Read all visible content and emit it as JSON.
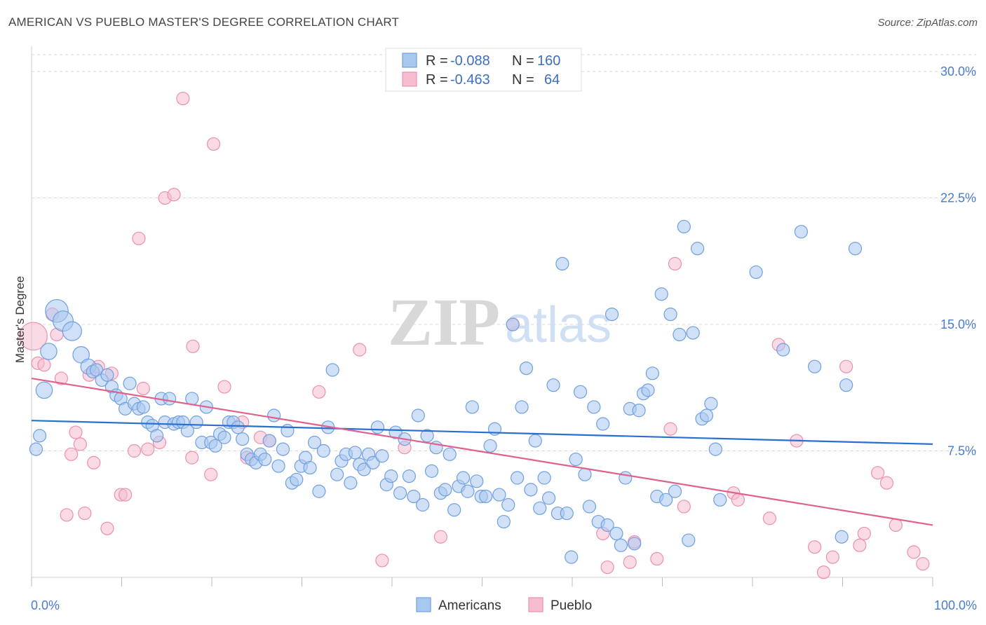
{
  "title": "AMERICAN VS PUEBLO MASTER'S DEGREE CORRELATION CHART",
  "source": "Source: ZipAtlas.com",
  "watermark": {
    "zip": "ZIP",
    "atlas": "atlas"
  },
  "colors": {
    "blue_fill": "#a9c8f0",
    "blue_stroke": "#6f9fe0",
    "blue_line": "#2a6fd0",
    "pink_fill": "#f6bcd0",
    "pink_stroke": "#ec8fb0",
    "pink_line": "#e0608e",
    "grid": "#d8d8d8",
    "axis_text": "#4a7bd0"
  },
  "legend": {
    "rows": [
      {
        "r_label": "R =",
        "r_value": "-0.088",
        "n_label": "N =",
        "n_value": "160"
      },
      {
        "r_label": "R =",
        "r_value": "-0.463",
        "n_label": "N =",
        "n_value": "64"
      }
    ]
  },
  "chart_data": {
    "type": "scatter",
    "title": "AMERICAN VS PUEBLO MASTER'S DEGREE CORRELATION CHART",
    "xlabel": "",
    "ylabel": "Master's Degree",
    "xlim": [
      0,
      100
    ],
    "ylim": [
      0,
      31
    ],
    "x_tick_labels": {
      "start": "0.0%",
      "end": "100.0%"
    },
    "y_ticks": [
      7.5,
      15.0,
      22.5,
      30.0
    ],
    "y_tick_labels": [
      "7.5%",
      "15.0%",
      "22.5%",
      "30.0%"
    ],
    "grid": true,
    "legend_position": "top-center",
    "series": [
      {
        "name": "Americans",
        "r": -0.088,
        "n": 160,
        "trend": {
          "x": [
            0,
            100
          ],
          "y": [
            9.3,
            7.9
          ]
        },
        "points": [
          [
            0.5,
            7.6,
            1
          ],
          [
            0.9,
            8.4,
            1
          ],
          [
            1.4,
            11.1,
            1.3
          ],
          [
            1.9,
            13.4,
            1.3
          ],
          [
            2.8,
            15.8,
            1.8
          ],
          [
            3.5,
            15.2,
            1.6
          ],
          [
            4.5,
            14.6,
            1.5
          ],
          [
            5.5,
            13.2,
            1.3
          ],
          [
            6.3,
            12.5,
            1.2
          ],
          [
            6.8,
            12.2,
            1
          ],
          [
            7.2,
            12.3,
            1
          ],
          [
            7.8,
            11.7,
            1
          ],
          [
            8.4,
            12.0,
            1
          ],
          [
            8.9,
            11.3,
            1
          ],
          [
            9.4,
            10.8,
            1
          ],
          [
            9.9,
            10.6,
            1
          ],
          [
            10.4,
            10.0,
            1
          ],
          [
            10.9,
            11.5,
            1
          ],
          [
            11.4,
            10.3,
            1
          ],
          [
            11.9,
            10.0,
            1
          ],
          [
            12.4,
            10.1,
            1
          ],
          [
            12.9,
            9.2,
            1
          ],
          [
            13.4,
            9.0,
            1
          ],
          [
            13.9,
            8.4,
            1
          ],
          [
            14.4,
            10.6,
            1
          ],
          [
            14.8,
            9.2,
            1
          ],
          [
            15.3,
            10.6,
            1
          ],
          [
            15.8,
            9.1,
            1
          ],
          [
            16.3,
            9.2,
            1
          ],
          [
            16.8,
            9.2,
            1
          ],
          [
            17.3,
            8.7,
            1
          ],
          [
            17.8,
            10.6,
            1
          ],
          [
            18.3,
            9.2,
            1
          ],
          [
            18.9,
            8.0,
            1
          ],
          [
            19.4,
            10.1,
            1
          ],
          [
            19.9,
            8.0,
            1
          ],
          [
            20.4,
            7.8,
            1
          ],
          [
            20.9,
            8.5,
            1
          ],
          [
            21.4,
            8.3,
            1
          ],
          [
            21.9,
            9.2,
            1
          ],
          [
            22.4,
            9.2,
            1
          ],
          [
            22.9,
            8.9,
            1
          ],
          [
            23.4,
            8.2,
            1
          ],
          [
            23.9,
            7.3,
            1
          ],
          [
            24.4,
            7.0,
            1
          ],
          [
            24.9,
            6.8,
            1
          ],
          [
            25.4,
            7.3,
            1
          ],
          [
            25.9,
            7.0,
            1
          ],
          [
            26.4,
            8.1,
            1
          ],
          [
            26.9,
            9.6,
            1
          ],
          [
            27.4,
            6.6,
            1
          ],
          [
            27.9,
            7.6,
            1
          ],
          [
            28.4,
            8.7,
            1
          ],
          [
            28.9,
            5.6,
            1
          ],
          [
            29.4,
            5.8,
            1
          ],
          [
            29.9,
            6.6,
            1
          ],
          [
            30.4,
            7.1,
            1
          ],
          [
            30.9,
            6.5,
            1
          ],
          [
            31.4,
            8.0,
            1
          ],
          [
            31.9,
            5.1,
            1
          ],
          [
            32.4,
            7.5,
            1
          ],
          [
            32.9,
            8.9,
            1
          ],
          [
            33.4,
            12.3,
            1
          ],
          [
            33.9,
            6.1,
            1
          ],
          [
            34.4,
            6.9,
            1
          ],
          [
            34.9,
            7.3,
            1
          ],
          [
            35.4,
            5.6,
            1
          ],
          [
            35.9,
            7.4,
            1
          ],
          [
            36.4,
            6.7,
            1
          ],
          [
            36.9,
            6.4,
            1
          ],
          [
            37.4,
            7.3,
            1
          ],
          [
            37.9,
            6.8,
            1
          ],
          [
            38.4,
            8.9,
            1
          ],
          [
            38.9,
            7.2,
            1
          ],
          [
            39.4,
            5.5,
            1
          ],
          [
            39.9,
            6.0,
            1
          ],
          [
            40.4,
            8.6,
            1
          ],
          [
            40.9,
            5.0,
            1
          ],
          [
            41.4,
            8.2,
            1
          ],
          [
            41.9,
            6.0,
            1
          ],
          [
            42.4,
            4.8,
            1
          ],
          [
            42.9,
            9.6,
            1
          ],
          [
            43.4,
            4.3,
            1
          ],
          [
            43.9,
            8.4,
            1
          ],
          [
            44.4,
            6.3,
            1
          ],
          [
            44.9,
            7.7,
            1
          ],
          [
            45.4,
            5.0,
            1
          ],
          [
            45.9,
            5.2,
            1
          ],
          [
            46.4,
            7.3,
            1
          ],
          [
            46.9,
            4.0,
            1
          ],
          [
            47.4,
            5.4,
            1
          ],
          [
            47.9,
            5.9,
            1
          ],
          [
            48.4,
            5.1,
            1
          ],
          [
            48.9,
            10.1,
            1
          ],
          [
            49.4,
            5.7,
            1
          ],
          [
            49.9,
            4.8,
            1
          ],
          [
            50.4,
            4.8,
            1
          ],
          [
            50.9,
            7.8,
            1
          ],
          [
            51.4,
            8.8,
            1
          ],
          [
            51.9,
            4.9,
            1
          ],
          [
            52.4,
            3.3,
            1
          ],
          [
            52.9,
            4.3,
            1
          ],
          [
            53.4,
            15.0,
            1
          ],
          [
            53.9,
            5.9,
            1
          ],
          [
            54.4,
            10.1,
            1
          ],
          [
            54.9,
            12.4,
            1
          ],
          [
            55.4,
            5.2,
            1
          ],
          [
            55.9,
            8.1,
            1
          ],
          [
            56.4,
            4.1,
            1
          ],
          [
            56.9,
            5.9,
            1
          ],
          [
            57.4,
            4.7,
            1
          ],
          [
            57.9,
            11.4,
            1
          ],
          [
            58.4,
            3.8,
            1
          ],
          [
            58.9,
            18.6,
            1
          ],
          [
            59.4,
            3.8,
            1
          ],
          [
            59.9,
            1.2,
            1
          ],
          [
            60.4,
            7.0,
            1
          ],
          [
            60.9,
            11.0,
            1
          ],
          [
            61.4,
            6.1,
            1
          ],
          [
            61.9,
            4.2,
            1
          ],
          [
            62.4,
            10.1,
            1
          ],
          [
            62.9,
            3.3,
            1
          ],
          [
            63.4,
            9.1,
            1
          ],
          [
            63.9,
            3.1,
            1
          ],
          [
            64.4,
            15.6,
            1
          ],
          [
            64.9,
            2.6,
            1
          ],
          [
            65.4,
            1.9,
            1
          ],
          [
            65.9,
            5.9,
            1
          ],
          [
            66.4,
            10.0,
            1
          ],
          [
            66.9,
            2.0,
            1
          ],
          [
            67.4,
            9.9,
            1
          ],
          [
            67.9,
            10.9,
            1
          ],
          [
            68.4,
            11.1,
            1
          ],
          [
            68.9,
            12.1,
            1
          ],
          [
            69.4,
            4.8,
            1
          ],
          [
            69.9,
            16.8,
            1
          ],
          [
            70.4,
            4.6,
            1
          ],
          [
            70.9,
            15.6,
            1
          ],
          [
            71.4,
            5.1,
            1
          ],
          [
            71.9,
            14.4,
            1
          ],
          [
            72.4,
            20.8,
            1
          ],
          [
            72.9,
            2.2,
            1
          ],
          [
            73.4,
            14.5,
            1
          ],
          [
            73.9,
            19.5,
            1
          ],
          [
            74.4,
            9.4,
            1
          ],
          [
            74.9,
            9.6,
            1
          ],
          [
            75.4,
            10.3,
            1
          ],
          [
            75.9,
            7.6,
            1
          ],
          [
            76.4,
            4.6,
            1
          ],
          [
            80.4,
            18.1,
            1
          ],
          [
            83.4,
            13.5,
            1
          ],
          [
            85.4,
            20.5,
            1
          ],
          [
            86.9,
            12.5,
            1
          ],
          [
            89.9,
            2.4,
            1
          ],
          [
            90.4,
            11.4,
            1
          ],
          [
            91.4,
            19.5,
            1
          ]
        ]
      },
      {
        "name": "Pueblo",
        "r": -0.463,
        "n": 64,
        "trend": {
          "x": [
            0,
            100
          ],
          "y": [
            11.8,
            3.1
          ]
        },
        "points": [
          [
            0.2,
            14.3,
            2.2
          ],
          [
            0.7,
            12.7,
            1
          ],
          [
            1.4,
            12.6,
            1
          ],
          [
            2.3,
            15.6,
            1
          ],
          [
            2.8,
            14.4,
            1
          ],
          [
            3.3,
            11.8,
            1
          ],
          [
            3.9,
            3.7,
            1
          ],
          [
            4.4,
            7.3,
            1
          ],
          [
            4.9,
            8.6,
            1
          ],
          [
            5.4,
            7.9,
            1
          ],
          [
            5.9,
            3.8,
            1
          ],
          [
            6.4,
            12.0,
            1
          ],
          [
            6.9,
            6.8,
            1
          ],
          [
            7.4,
            12.5,
            1
          ],
          [
            8.4,
            2.9,
            1
          ],
          [
            8.9,
            12.1,
            1
          ],
          [
            9.9,
            4.9,
            1
          ],
          [
            10.4,
            4.9,
            1
          ],
          [
            11.4,
            7.5,
            1
          ],
          [
            11.9,
            20.1,
            1
          ],
          [
            12.4,
            11.2,
            1
          ],
          [
            12.9,
            7.6,
            1
          ],
          [
            14.2,
            8.0,
            1
          ],
          [
            14.8,
            22.5,
            1
          ],
          [
            15.8,
            22.7,
            1
          ],
          [
            16.8,
            28.4,
            1
          ],
          [
            17.8,
            7.1,
            1
          ],
          [
            17.9,
            13.7,
            1
          ],
          [
            19.9,
            6.1,
            1
          ],
          [
            20.2,
            25.7,
            1
          ],
          [
            21.4,
            11.3,
            1
          ],
          [
            23.4,
            9.2,
            1
          ],
          [
            23.9,
            7.1,
            1
          ],
          [
            25.4,
            8.3,
            1
          ],
          [
            26.4,
            8.1,
            1
          ],
          [
            31.9,
            11.0,
            1
          ],
          [
            36.4,
            13.5,
            1
          ],
          [
            38.9,
            1.0,
            1
          ],
          [
            41.4,
            7.7,
            1
          ],
          [
            45.4,
            2.4,
            1
          ],
          [
            53.4,
            15.0,
            1
          ],
          [
            63.4,
            2.6,
            1
          ],
          [
            63.9,
            0.6,
            1
          ],
          [
            66.4,
            0.9,
            1
          ],
          [
            66.9,
            2.1,
            1
          ],
          [
            69.4,
            1.1,
            1
          ],
          [
            70.9,
            8.8,
            1
          ],
          [
            71.4,
            18.6,
            1
          ],
          [
            72.4,
            4.2,
            1
          ],
          [
            77.9,
            5.0,
            1
          ],
          [
            78.4,
            4.6,
            1
          ],
          [
            81.9,
            3.5,
            1
          ],
          [
            82.9,
            13.8,
            1
          ],
          [
            84.9,
            8.1,
            1
          ],
          [
            86.9,
            1.8,
            1
          ],
          [
            87.9,
            0.3,
            1
          ],
          [
            88.9,
            1.2,
            1
          ],
          [
            90.4,
            12.5,
            1
          ],
          [
            91.9,
            1.9,
            1
          ],
          [
            92.4,
            2.6,
            1
          ],
          [
            93.9,
            6.2,
            1
          ],
          [
            94.9,
            5.6,
            1
          ],
          [
            95.9,
            3.1,
            1
          ],
          [
            97.9,
            1.5,
            1
          ],
          [
            98.9,
            0.8,
            1
          ]
        ]
      }
    ]
  },
  "bottom_legend": [
    "Americans",
    "Pueblo"
  ]
}
